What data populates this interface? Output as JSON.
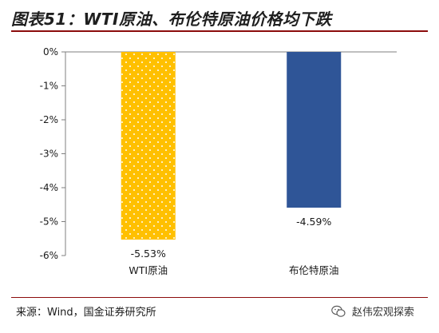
{
  "title": "图表51：WTI原油、布伦特原油价格均下跌",
  "source": "来源：Wind，国金证券研究所",
  "watermark": "赵伟宏观探索",
  "watermark_icon": "wechat-icon",
  "colors": {
    "accent_rule": "#8c0c0c",
    "wti_bar": "#ffc000",
    "brent_bar": "#2f5597",
    "axis": "#7f7f7f"
  },
  "chart_data": {
    "type": "bar",
    "title": "",
    "xlabel": "",
    "ylabel": "",
    "categories": [
      "WTI原油",
      "布伦特原油"
    ],
    "values": [
      -5.53,
      -4.59
    ],
    "data_labels": [
      "-5.53%",
      "-4.59%"
    ],
    "ylim": [
      -6,
      0
    ],
    "yticks": [
      "0%",
      "-1%",
      "-2%",
      "-3%",
      "-4%",
      "-5%",
      "-6%"
    ],
    "grid": false,
    "legend": "none",
    "bar_styles": [
      "dotted-pattern",
      "solid"
    ]
  }
}
